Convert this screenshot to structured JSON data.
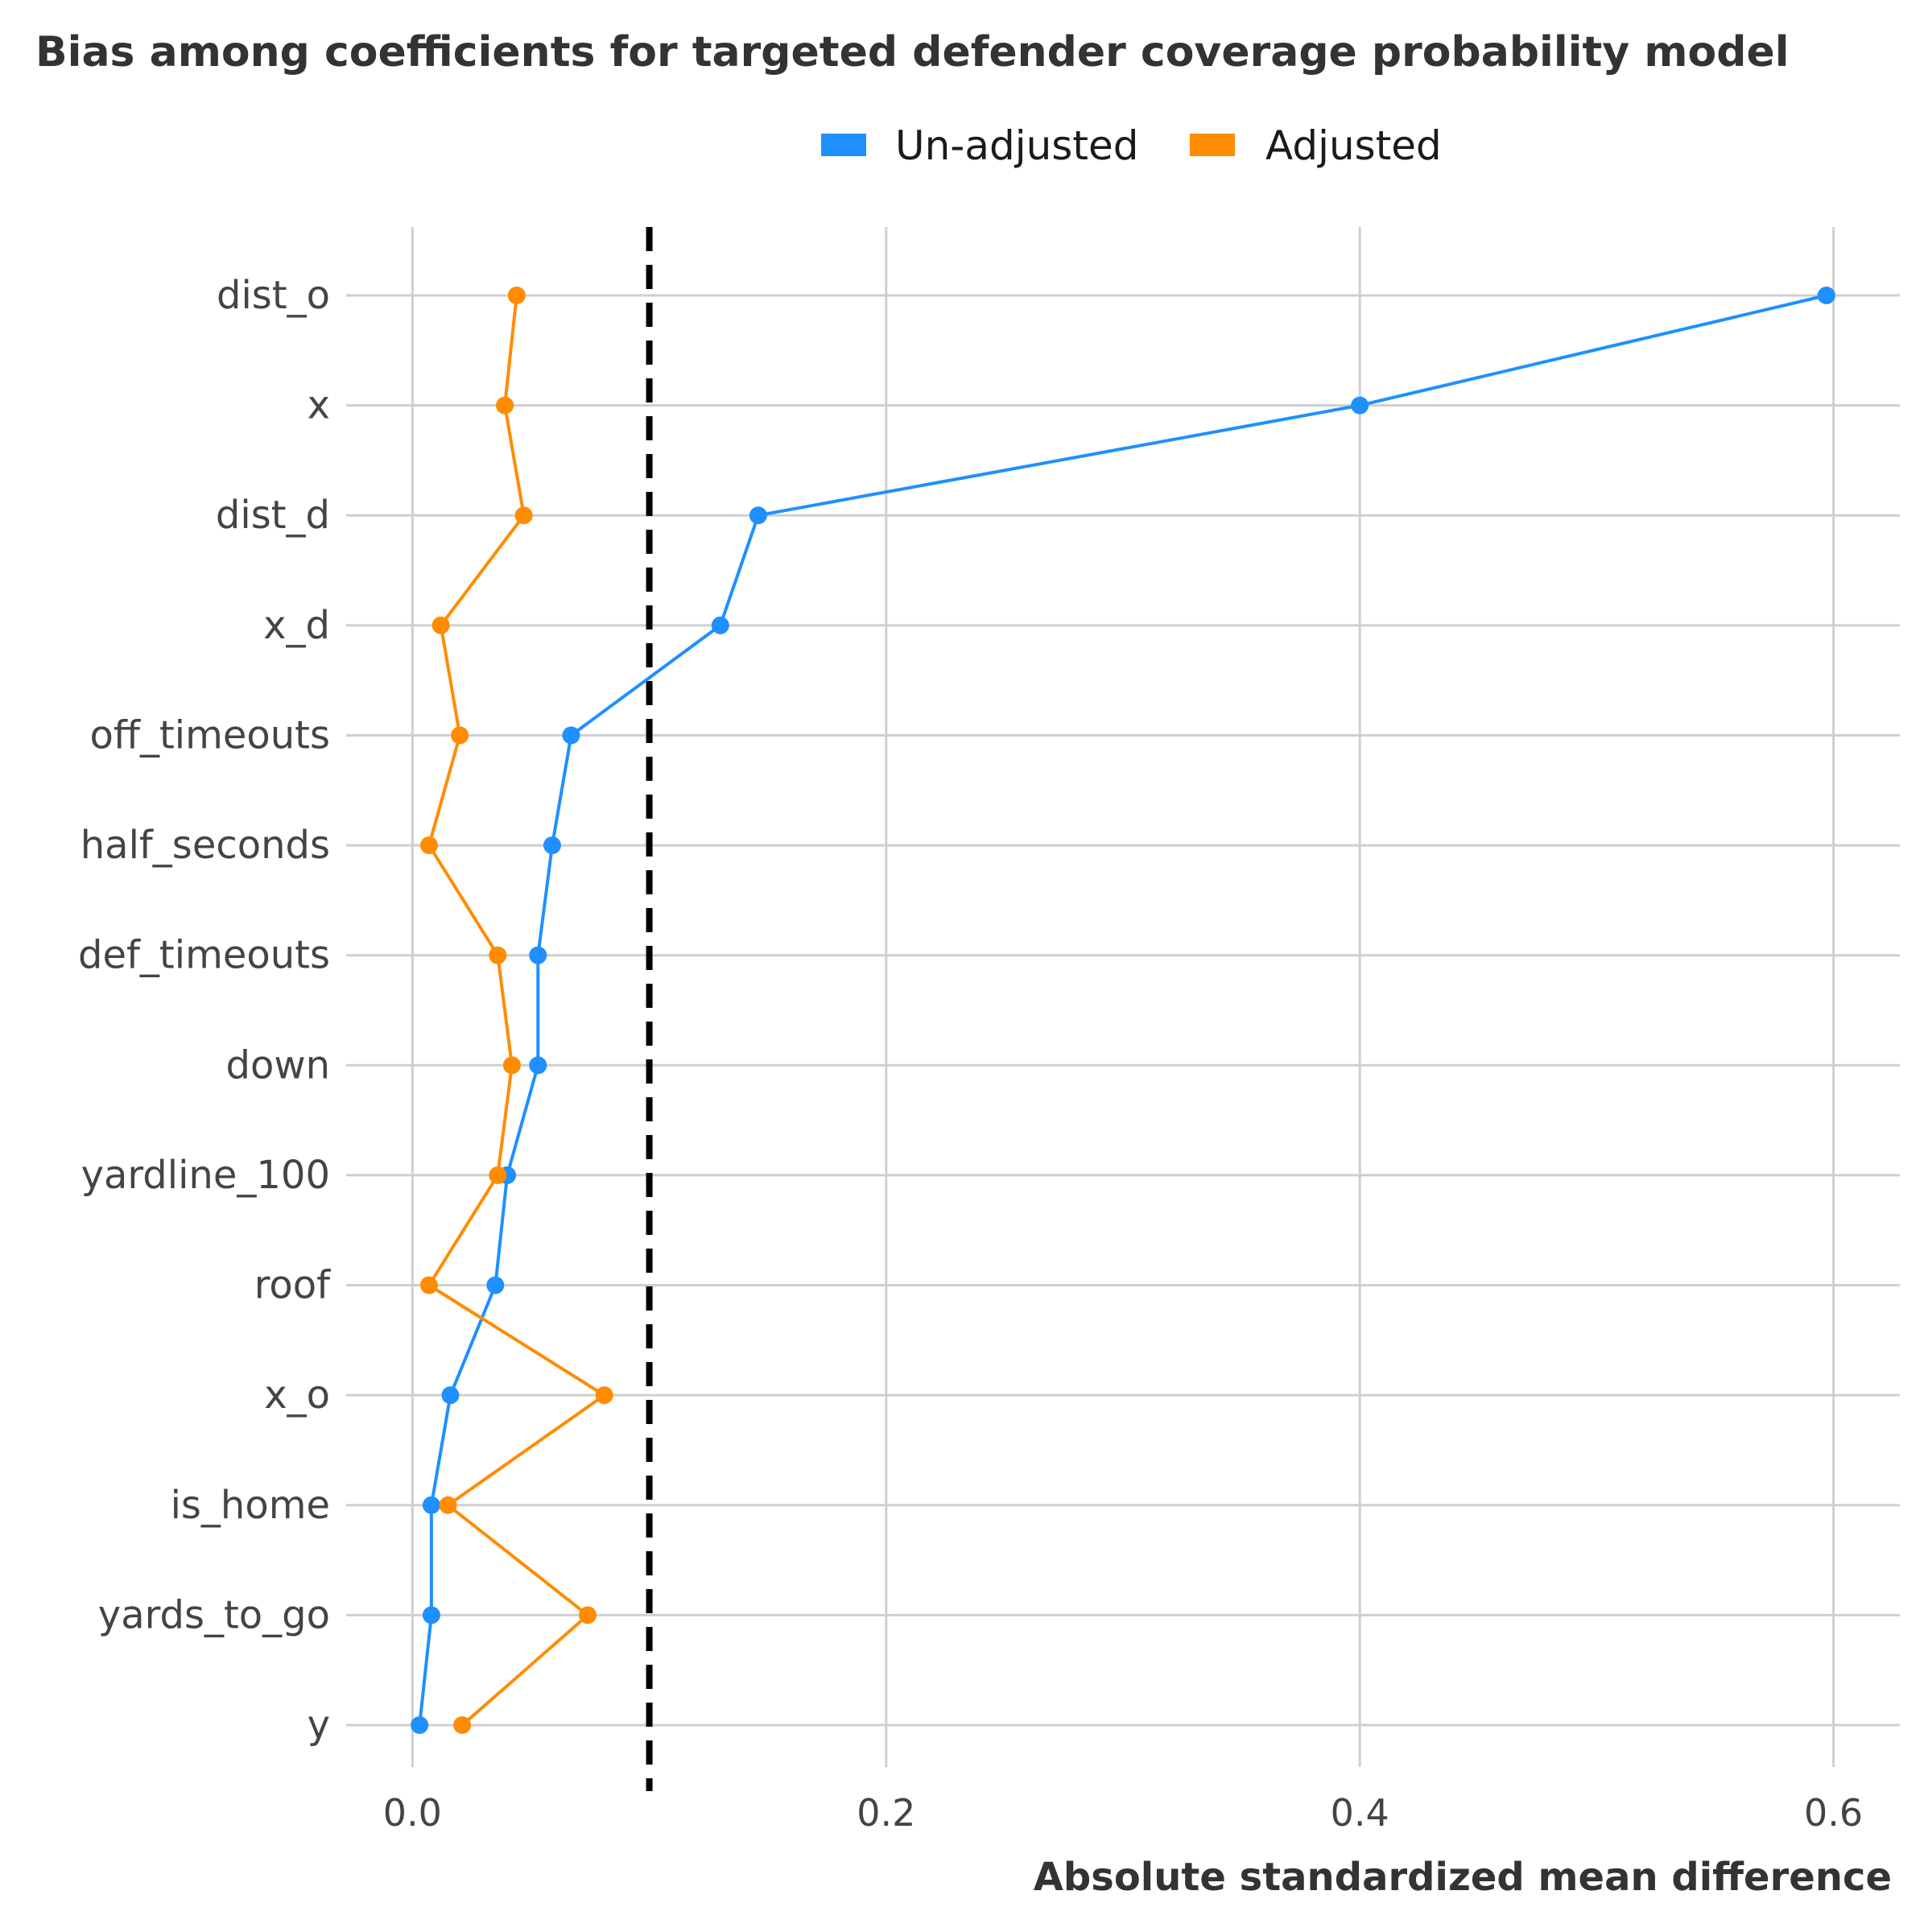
{
  "chart_data": {
    "type": "line",
    "title": "Bias among coefficients for targeted defender coverage probability model",
    "xlabel": "Absolute standardized mean difference",
    "ylabel": "",
    "xlim": [
      -0.028,
      0.628
    ],
    "x_ticks": [
      "0.0",
      "0.2",
      "0.4",
      "0.6"
    ],
    "x_tick_values": [
      0.0,
      0.2,
      0.4,
      0.6
    ],
    "threshold_line": {
      "x": 0.1,
      "style": "dashed",
      "color": "#000000"
    },
    "grid": true,
    "legend_position": "top",
    "categories": [
      "dist_o",
      "x",
      "dist_d",
      "x_d",
      "off_timeouts",
      "half_seconds",
      "def_timeouts",
      "down",
      "yardline_100",
      "roof",
      "x_o",
      "is_home",
      "yards_to_go",
      "y"
    ],
    "series": [
      {
        "name": "Un-adjusted",
        "color": "#1e90ff",
        "values": [
          0.597,
          0.4,
          0.146,
          0.13,
          0.067,
          0.059,
          0.053,
          0.053,
          0.04,
          0.035,
          0.016,
          0.008,
          0.008,
          0.003
        ]
      },
      {
        "name": "Adjusted",
        "color": "#ff8c00",
        "values": [
          0.044,
          0.039,
          0.047,
          0.012,
          0.02,
          0.007,
          0.036,
          0.042,
          0.036,
          0.007,
          0.081,
          0.015,
          0.074,
          0.021
        ]
      }
    ]
  }
}
